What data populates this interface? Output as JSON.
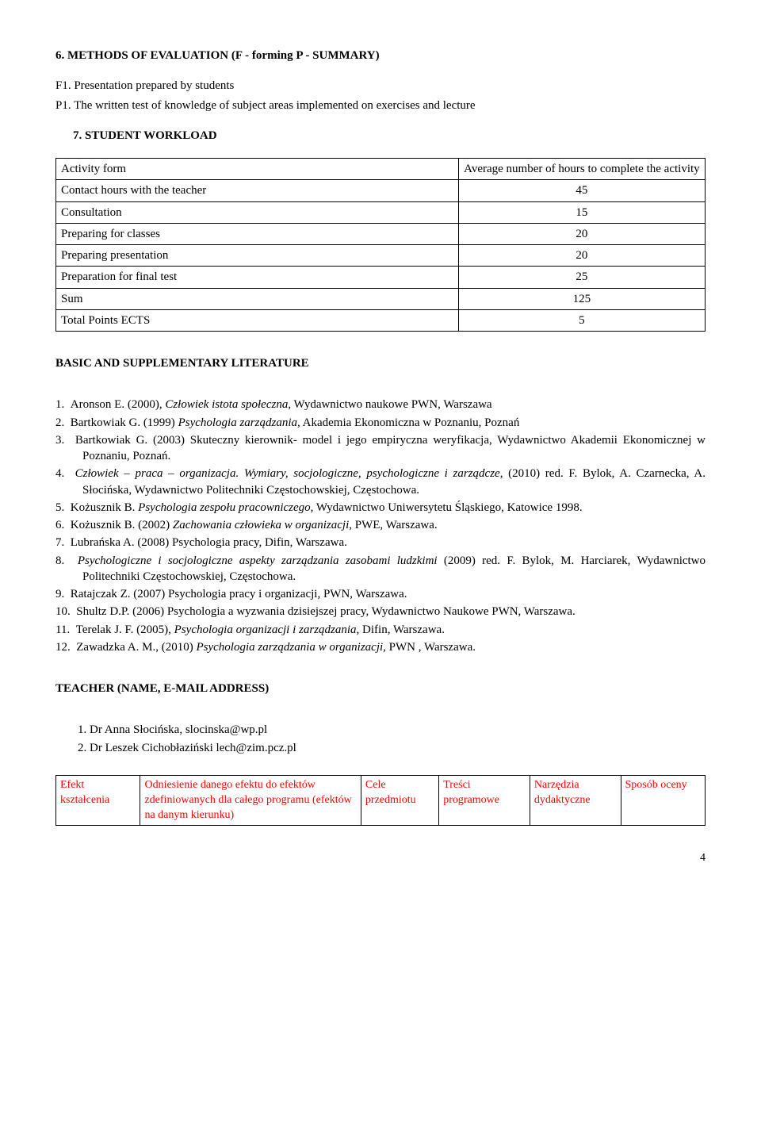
{
  "s6": {
    "heading": "6.   METHODS OF EVALUATION (F - forming P - SUMMARY)",
    "f1": "F1. Presentation prepared by students",
    "p1": "P1. The written test of knowledge of subject areas implemented on exercises and lecture"
  },
  "s7": {
    "heading": "7.   STUDENT WORKLOAD",
    "table": {
      "col1_header": "Activity form",
      "col2_header": "Average number of hours to complete the activity",
      "rows": [
        {
          "label": "Contact hours with the teacher",
          "val": "45"
        },
        {
          "label": "Consultation",
          "val": "15"
        },
        {
          "label": "Preparing for classes",
          "val": "20"
        },
        {
          "label": "Preparing presentation",
          "val": "20"
        },
        {
          "label": "Preparation for final test",
          "val": "25"
        },
        {
          "label": "Sum",
          "val": "125"
        },
        {
          "label": "Total Points ECTS",
          "val": "5"
        }
      ]
    }
  },
  "lit": {
    "heading": "BASIC AND SUPPLEMENTARY LITERATURE",
    "items": [
      {
        "n": "1.",
        "html": "Aronson E. (2000), <i>Człowiek istota społeczna</i>, Wydawnictwo naukowe PWN, Warszawa"
      },
      {
        "n": "2.",
        "html": "Bartkowiak G. (1999) <i>Psychologia zarządzania</i>, Akademia Ekonomiczna w Poznaniu, Poznań"
      },
      {
        "n": "3.",
        "html": "Bartkowiak G. (2003) Skuteczny kierownik- model i jego empiryczna weryfikacja, Wydawnictwo Akademii Ekonomicznej w Poznaniu, Poznań."
      },
      {
        "n": "4.",
        "html": "<i>Człowiek – praca – organizacja. Wymiary, socjologiczne, psychologiczne i zarządcze</i>, (2010) red. F. Bylok, A. Czarnecka, A. Słocińska, Wydawnictwo Politechniki Częstochowskiej, Częstochowa."
      },
      {
        "n": "5.",
        "html": "Kożusznik B. <i>Psychologia zespołu pracowniczego</i>, Wydawnictwo Uniwersytetu Śląskiego, Katowice 1998."
      },
      {
        "n": "6.",
        "html": "Kożusznik B. (2002) <i>Zachowania człowieka w organizacji</i>, PWE, Warszawa."
      },
      {
        "n": "7.",
        "html": "Lubrańska A. (2008) Psychologia pracy, Difin, Warszawa."
      },
      {
        "n": "8.",
        "html": "<i>Psychologiczne i socjologiczne aspekty zarządzania zasobami ludzkimi</i> (2009) red. F. Bylok, M. Harciarek, Wydawnictwo Politechniki Częstochowskiej, Częstochowa."
      },
      {
        "n": "9.",
        "html": "Ratajczak Z. (2007) Psychologia pracy i organizacji, PWN, Warszawa."
      },
      {
        "n": "10.",
        "html": "Shultz D.P. (2006) Psychologia a wyzwania dzisiejszej pracy, Wydawnictwo Naukowe PWN, Warszawa."
      },
      {
        "n": "11.",
        "html": "Terelak J. F. (2005), <i>Psychologia organizacji i zarządzania</i>, Difin, Warszawa."
      },
      {
        "n": "12.",
        "html": "Zawadzka A. M., (2010) <i>Psychologia zarządzania w organizacji,</i> PWN , Warszawa."
      }
    ]
  },
  "teacher": {
    "heading": "TEACHER (NAME, E-MAIL ADDRESS)",
    "t1": "1.  Dr Anna Słocińska, slocinska@wp.pl",
    "t2": "2.  Dr Leszek Cichobłaziński lech@zim.pcz.pl"
  },
  "outcomes": {
    "cols": [
      "Efekt kształcenia",
      "Odniesienie danego efektu do efektów zdefiniowanych dla całego programu (efektów na danym kierunku)",
      "Cele przedmiotu",
      "Treści programowe",
      "Narzędzia dydaktyczne",
      "Sposób oceny"
    ],
    "col_widths": [
      "13%",
      "34%",
      "12%",
      "14%",
      "14%",
      "13%"
    ],
    "text_color": "#ff0000"
  },
  "pagenum": "4"
}
